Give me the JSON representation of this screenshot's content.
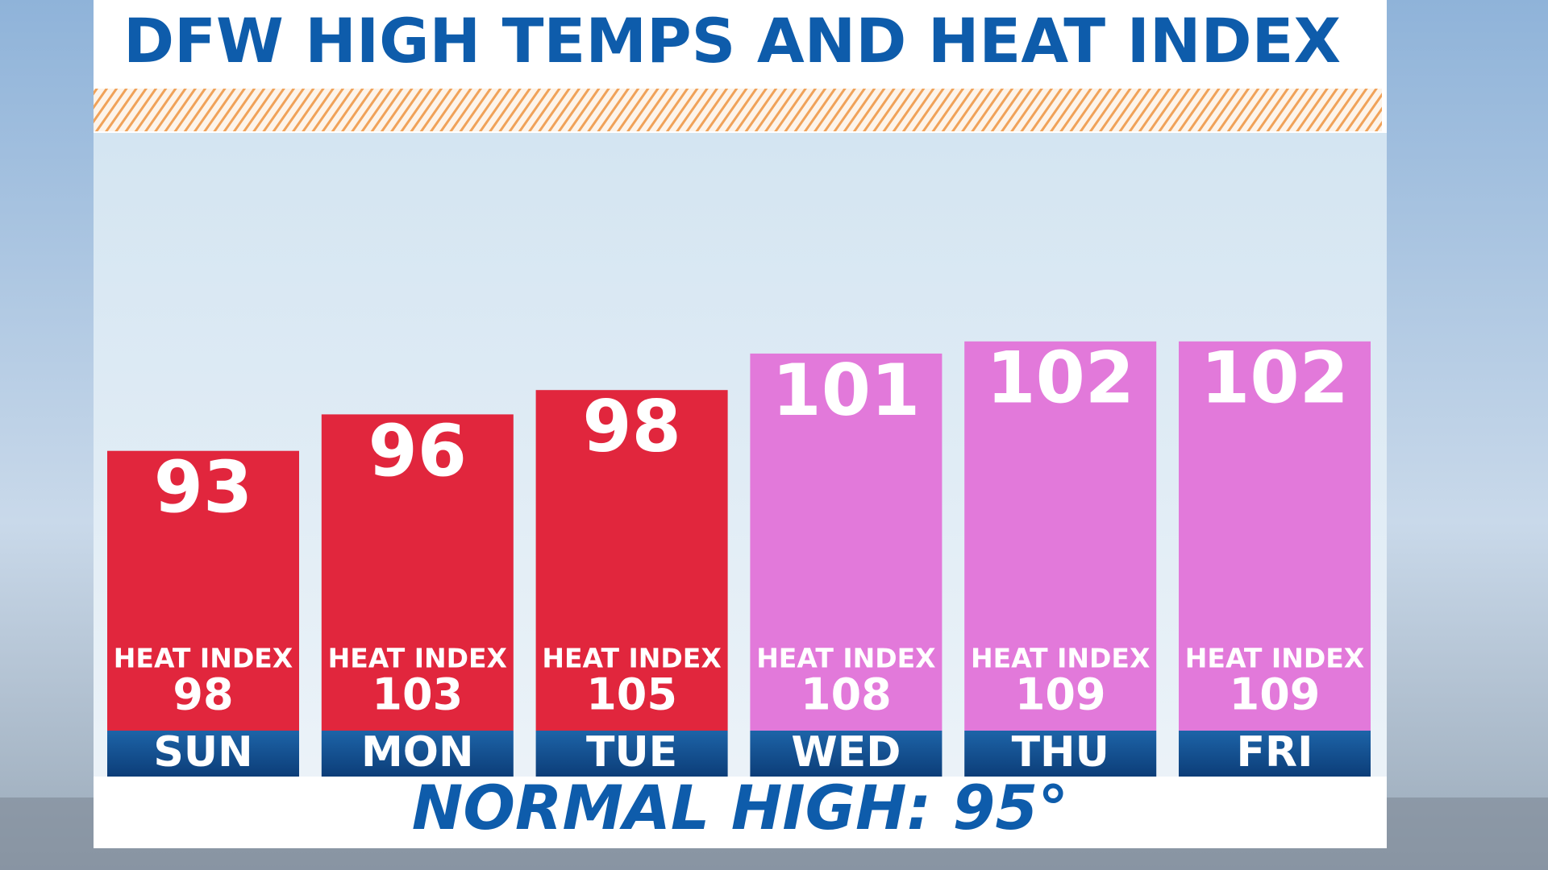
{
  "chart_data": {
    "type": "bar",
    "title": "DFW HIGH TEMPS AND HEAT INDEX",
    "categories": [
      "SUN",
      "MON",
      "TUE",
      "WED",
      "THU",
      "FRI"
    ],
    "values": [
      93,
      96,
      98,
      101,
      102,
      102
    ],
    "colors": [
      "#e1263d",
      "#e1263d",
      "#e1263d",
      "#e279da",
      "#e279da",
      "#e279da"
    ],
    "heat_index_label": "HEAT INDEX",
    "heat_index": [
      98,
      103,
      105,
      108,
      109,
      109
    ],
    "annotation": "NORMAL HIGH: 95°",
    "ylim": [
      70,
      110
    ]
  }
}
